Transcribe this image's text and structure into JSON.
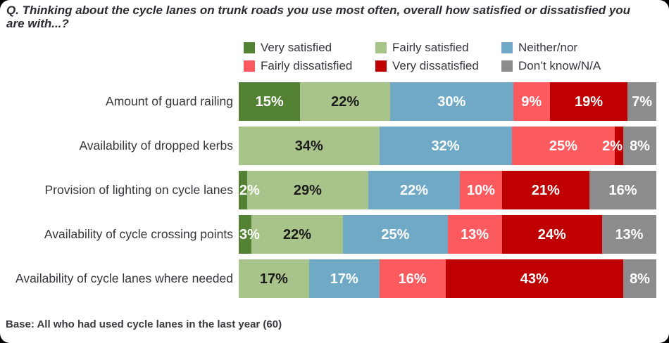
{
  "title": "Q. Thinking about the cycle lanes on trunk roads you use most often, overall how satisfied or dissatisfied you are with...?",
  "base_note": "Base: All who had used cycle lanes in the last year (60)",
  "chart_data": {
    "type": "bar",
    "stacked": true,
    "orientation": "horizontal",
    "unit": "%",
    "xlim": [
      0,
      100
    ],
    "legend_position": "top",
    "grid": false,
    "categories": [
      "Amount of guard railing",
      "Availability of dropped kerbs",
      "Provision of lighting on cycle lanes",
      "Availability of cycle crossing points",
      "Availability of cycle lanes where needed"
    ],
    "series": [
      {
        "name": "Very satisfied",
        "color": "#548235",
        "label_color": "#ffffff",
        "values": [
          15,
          0,
          2,
          3,
          0
        ]
      },
      {
        "name": "Fairly satisfied",
        "color": "#a9c48a",
        "label_color": "#1a1a1a",
        "values": [
          22,
          34,
          29,
          22,
          17
        ]
      },
      {
        "name": "Neither/nor",
        "color": "#6fa9c6",
        "label_color": "#ffffff",
        "values": [
          30,
          32,
          22,
          25,
          17
        ]
      },
      {
        "name": "Fairly dissatisfied",
        "color": "#fb5a5f",
        "label_color": "#ffffff",
        "values": [
          9,
          25,
          10,
          13,
          16
        ]
      },
      {
        "name": "Very dissatisfied",
        "color": "#c00000",
        "label_color": "#ffffff",
        "values": [
          19,
          2,
          21,
          24,
          43
        ]
      },
      {
        "name": "Don’t know/N/A",
        "color": "#8c8c8c",
        "label_color": "#ffffff",
        "values": [
          7,
          8,
          16,
          13,
          8
        ]
      }
    ],
    "label_overrides": [
      {
        "category": 1,
        "series": 4,
        "spill": "left"
      },
      {
        "category": 2,
        "series": 0,
        "spill": "right"
      },
      {
        "category": 3,
        "series": 0,
        "spill": "right"
      }
    ]
  }
}
